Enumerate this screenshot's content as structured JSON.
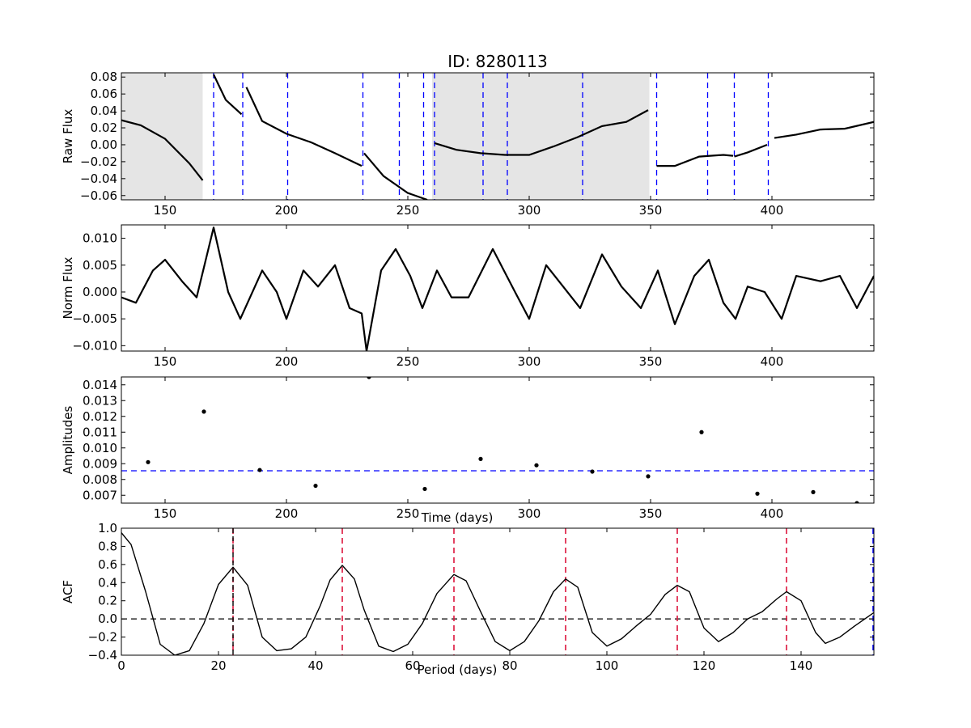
{
  "figure": {
    "title": "ID: 8280113"
  },
  "chart_data": [
    {
      "type": "line",
      "panel": "raw_flux",
      "ylabel": "Raw Flux",
      "xlabel": "",
      "xlim": [
        132,
        442
      ],
      "ylim": [
        -0.065,
        0.085
      ],
      "xticks": [
        150,
        200,
        250,
        300,
        350,
        400
      ],
      "yticks": [
        -0.06,
        -0.04,
        -0.02,
        0.0,
        0.02,
        0.04,
        0.06,
        0.08
      ],
      "ytick_labels": [
        "−0.06",
        "−0.04",
        "−0.02",
        "0.00",
        "0.02",
        "0.04",
        "0.06",
        "0.08"
      ],
      "shaded_ranges": [
        [
          132,
          165.5
        ],
        [
          260,
          349.5
        ]
      ],
      "vlines": [
        170,
        182,
        200.5,
        231.5,
        246.5,
        256.5,
        261,
        281,
        291,
        322,
        352.5,
        373.5,
        384.5,
        398.5
      ],
      "vline_color": "#0000ff",
      "line_color": "#000000",
      "segments": [
        {
          "x": [
            132,
            140,
            150,
            160,
            165.5
          ],
          "y": [
            0.029,
            0.023,
            0.007,
            -0.022,
            -0.042
          ]
        },
        {
          "x": [
            170,
            175,
            181.5
          ],
          "y": [
            0.083,
            0.053,
            0.036
          ]
        },
        {
          "x": [
            183.5,
            190,
            200,
            210,
            220,
            231
          ],
          "y": [
            0.068,
            0.028,
            0.013,
            0.003,
            -0.01,
            -0.025
          ]
        },
        {
          "x": [
            232,
            240,
            250,
            258
          ],
          "y": [
            -0.01,
            -0.037,
            -0.057,
            -0.065
          ]
        },
        {
          "x": [
            261,
            270,
            280,
            290,
            300,
            310,
            320,
            330,
            340,
            349
          ],
          "y": [
            0.002,
            -0.006,
            -0.01,
            -0.012,
            -0.012,
            -0.002,
            0.009,
            0.022,
            0.027,
            0.041
          ]
        },
        {
          "x": [
            352.5,
            360,
            370,
            380,
            384
          ],
          "y": [
            -0.025,
            -0.025,
            -0.014,
            -0.012,
            -0.013
          ]
        },
        {
          "x": [
            384.5,
            390,
            398
          ],
          "y": [
            -0.014,
            -0.009,
            0.0
          ]
        },
        {
          "x": [
            401,
            410,
            420,
            430,
            442
          ],
          "y": [
            0.008,
            0.012,
            0.018,
            0.019,
            0.027
          ]
        }
      ]
    },
    {
      "type": "line",
      "panel": "norm_flux",
      "ylabel": "Norm Flux",
      "xlabel": "",
      "xlim": [
        132,
        442
      ],
      "ylim": [
        -0.011,
        0.0125
      ],
      "xticks": [
        150,
        200,
        250,
        300,
        350,
        400
      ],
      "yticks": [
        -0.01,
        -0.005,
        0.0,
        0.005,
        0.01
      ],
      "ytick_labels": [
        "−0.010",
        "−0.005",
        "0.000",
        "0.005",
        "0.010"
      ],
      "line_color": "#000000",
      "x": [
        132,
        138,
        145,
        150,
        157,
        163,
        170,
        176,
        181,
        190,
        196,
        200,
        207,
        213,
        220,
        226,
        231,
        233,
        239,
        245,
        251,
        256,
        262,
        268,
        275,
        285,
        293,
        300,
        307,
        314,
        321,
        330,
        338,
        346,
        353,
        360,
        368,
        374,
        380,
        385,
        390,
        397,
        404,
        410,
        420,
        428,
        435,
        442
      ],
      "y": [
        -0.001,
        -0.002,
        0.004,
        0.006,
        0.002,
        -0.001,
        0.012,
        0.0,
        -0.005,
        0.004,
        0.0,
        -0.005,
        0.004,
        0.001,
        0.005,
        -0.003,
        -0.004,
        -0.011,
        0.004,
        0.008,
        0.003,
        -0.003,
        0.004,
        -0.001,
        -0.001,
        0.008,
        0.001,
        -0.005,
        0.005,
        0.001,
        -0.003,
        0.007,
        0.001,
        -0.003,
        0.004,
        -0.006,
        0.003,
        0.006,
        -0.002,
        -0.005,
        0.001,
        0.0,
        -0.005,
        0.003,
        0.002,
        0.003,
        -0.003,
        0.003
      ]
    },
    {
      "type": "scatter",
      "panel": "amplitudes",
      "ylabel": "Amplitudes",
      "xlabel": "Time (days)",
      "xlim": [
        132,
        442
      ],
      "ylim": [
        0.0065,
        0.0145
      ],
      "xticks": [
        150,
        200,
        250,
        300,
        350,
        400
      ],
      "yticks": [
        0.007,
        0.008,
        0.009,
        0.01,
        0.011,
        0.012,
        0.013,
        0.014
      ],
      "ytick_labels": [
        "0.007",
        "0.008",
        "0.009",
        "0.010",
        "0.011",
        "0.012",
        "0.013",
        "0.014"
      ],
      "point_color": "#000000",
      "x": [
        143,
        166,
        189,
        212,
        234,
        257,
        280,
        303,
        326,
        349,
        371,
        394,
        417,
        435
      ],
      "y": [
        0.0091,
        0.0123,
        0.0086,
        0.0076,
        0.0145,
        0.0074,
        0.0093,
        0.0089,
        0.0085,
        0.0082,
        0.011,
        0.0071,
        0.0072,
        0.0065
      ],
      "hline": 0.00855,
      "hline_color": "#0000ff"
    },
    {
      "type": "line",
      "panel": "acf",
      "ylabel": "ACF",
      "xlabel": "Period (days)",
      "xlim": [
        0,
        155
      ],
      "ylim": [
        -0.4,
        1.0
      ],
      "xticks": [
        0,
        20,
        40,
        60,
        80,
        100,
        120,
        140
      ],
      "yticks": [
        -0.4,
        -0.2,
        0.0,
        0.2,
        0.4,
        0.6,
        0.8,
        1.0
      ],
      "ytick_labels": [
        "−0.4",
        "−0.2",
        "0.0",
        "0.2",
        "0.4",
        "0.6",
        "0.8",
        "1.0"
      ],
      "line_color": "#000000",
      "x": [
        0,
        2,
        5,
        8,
        11,
        14,
        17,
        20,
        23,
        26,
        29,
        32,
        35,
        38,
        41,
        43,
        45.5,
        48,
        50,
        53,
        56,
        59,
        62,
        65,
        68.5,
        71,
        74,
        77,
        80,
        83,
        86,
        89,
        91.5,
        94,
        97,
        100,
        103,
        106,
        109,
        112,
        114.5,
        117,
        120,
        123,
        126,
        129,
        132,
        135,
        137,
        140,
        143,
        145,
        148,
        151,
        155
      ],
      "y": [
        0.95,
        0.82,
        0.3,
        -0.28,
        -0.4,
        -0.35,
        -0.05,
        0.38,
        0.57,
        0.37,
        -0.2,
        -0.35,
        -0.33,
        -0.2,
        0.15,
        0.43,
        0.59,
        0.44,
        0.1,
        -0.3,
        -0.36,
        -0.28,
        -0.05,
        0.28,
        0.49,
        0.42,
        0.08,
        -0.25,
        -0.35,
        -0.25,
        -0.02,
        0.3,
        0.44,
        0.35,
        -0.15,
        -0.3,
        -0.22,
        -0.08,
        0.05,
        0.27,
        0.37,
        0.3,
        -0.1,
        -0.25,
        -0.15,
        0.0,
        0.08,
        0.22,
        0.3,
        0.2,
        -0.15,
        -0.27,
        -0.2,
        -0.08,
        0.07
      ],
      "hline": 0.0,
      "hline_color": "#000000",
      "vlines_red": [
        45.5,
        68.5,
        91.5,
        114.5,
        137
      ],
      "vline_red_color": "#dc143c",
      "vline_black": 23,
      "vline_black_with_red": 23,
      "vline_blue": 155,
      "vline_blue_color": "#0000ff"
    }
  ]
}
